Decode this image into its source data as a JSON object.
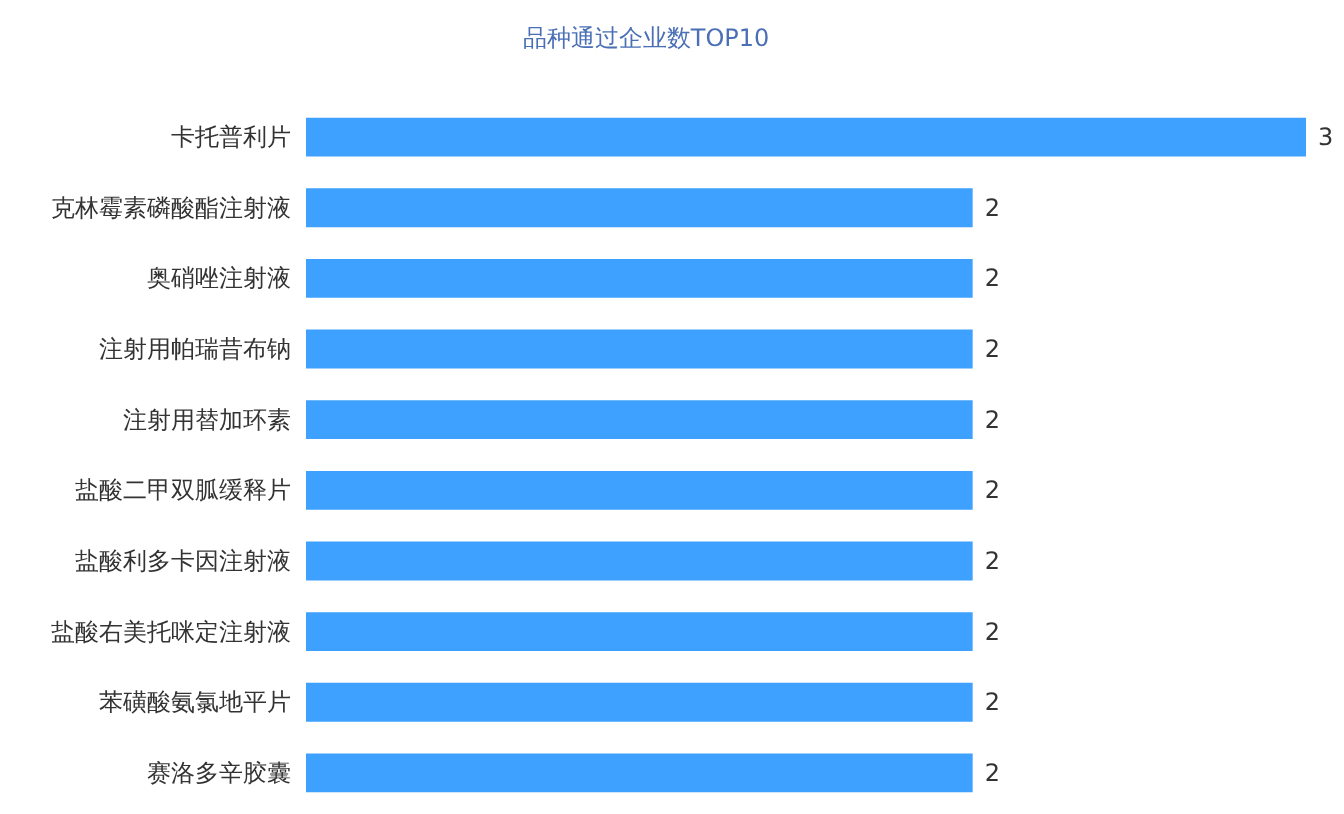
{
  "chart_data": {
    "type": "bar",
    "orientation": "horizontal",
    "title": "品种通过企业数TOP10",
    "categories": [
      "卡托普利片",
      "克林霉素磷酸酯注射液",
      "奥硝唑注射液",
      "注射用帕瑞昔布钠",
      "注射用替加环素",
      "盐酸二甲双胍缓释片",
      "盐酸利多卡因注射液",
      "盐酸右美托咪定注射液",
      "苯磺酸氨氯地平片",
      "赛洛多辛胶囊"
    ],
    "values": [
      3,
      2,
      2,
      2,
      2,
      2,
      2,
      2,
      2,
      2
    ],
    "color": "#3ea0ff",
    "xlim": [
      0,
      3
    ],
    "tick_labels": "y",
    "data_labels": true
  }
}
